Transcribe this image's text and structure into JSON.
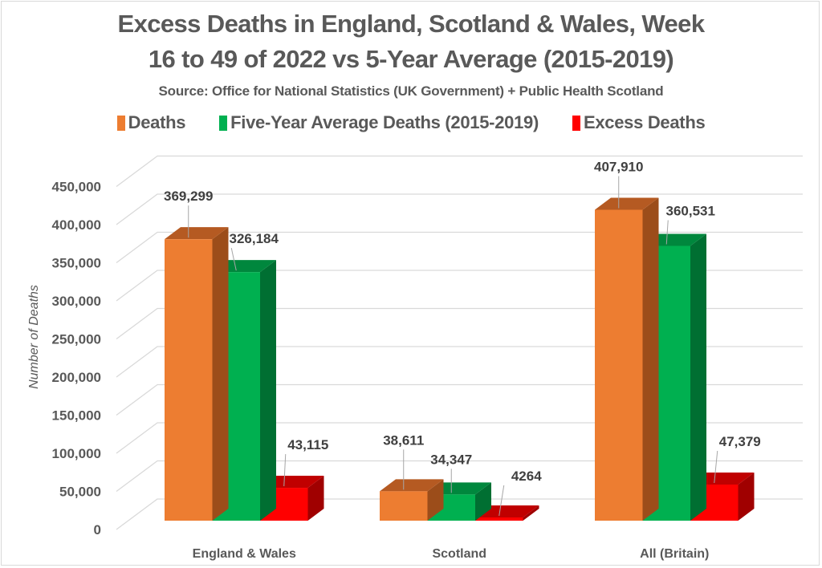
{
  "chart_data": {
    "type": "bar",
    "style": "3d-clustered-column",
    "title_line1": "Excess Deaths in England, Scotland & Wales, Week",
    "title_line2": "16 to 49 of 2022 vs 5-Year Average (2015-2019)",
    "subtitle": "Source: Office for National Statistics (UK Government) + Public Health Scotland",
    "xlabel": "",
    "ylabel": "Number of Deaths",
    "ylim": [
      0,
      450000
    ],
    "yticks": [
      0,
      50000,
      100000,
      150000,
      200000,
      250000,
      300000,
      350000,
      400000,
      450000
    ],
    "ytick_labels": [
      "0",
      "50,000",
      "100,000",
      "150,000",
      "200,000",
      "250,000",
      "300,000",
      "350,000",
      "400,000",
      "450,000"
    ],
    "grid": true,
    "legend_position": "top",
    "categories": [
      "England & Wales",
      "Scotland",
      "All (Britain)"
    ],
    "series": [
      {
        "name": "Deaths",
        "color": "#ED7D31",
        "top_color": "#B55A22",
        "side_color": "#9C4D1A",
        "values": [
          369299,
          38611,
          407910
        ],
        "labels": [
          "369,299",
          "38,611",
          "407,910"
        ]
      },
      {
        "name": "Five-Year Average Deaths (2015-2019)",
        "color": "#00B050",
        "top_color": "#00873D",
        "side_color": "#006F32",
        "values": [
          326184,
          34347,
          360531
        ],
        "labels": [
          "326,184",
          "34,347",
          "360,531"
        ]
      },
      {
        "name": "Excess Deaths",
        "color": "#FF0000",
        "top_color": "#C00000",
        "side_color": "#A00000",
        "values": [
          43115,
          4264,
          47379
        ],
        "labels": [
          "43,115",
          "4264",
          "47,379"
        ]
      }
    ]
  }
}
